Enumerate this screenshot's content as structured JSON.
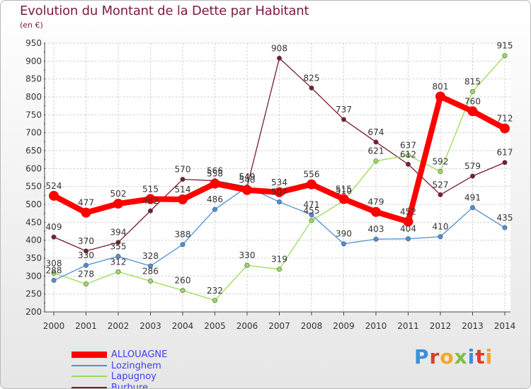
{
  "chart_data": {
    "type": "line",
    "title": "Evolution du Montant de la Dette par Habitant",
    "subtitle": "(en €)",
    "x": [
      "2000",
      "2001",
      "2002",
      "2003",
      "2004",
      "2005",
      "2006",
      "2007",
      "2008",
      "2009",
      "2010",
      "2011",
      "2012",
      "2013",
      "2014"
    ],
    "ylim": [
      200,
      950
    ],
    "yticks": [
      200,
      250,
      300,
      350,
      400,
      450,
      500,
      550,
      600,
      650,
      700,
      750,
      800,
      850,
      900,
      950
    ],
    "grid": true,
    "legend_placement": "bottom-left",
    "series": [
      {
        "name": "ALLOUAGNE",
        "color": "#ff0000",
        "values": [
          524,
          477,
          502,
          515,
          514,
          558,
          540,
          534,
          556,
          515,
          479,
          452,
          801,
          760,
          712
        ]
      },
      {
        "name": "Lozinghem",
        "color": "#4a90d9",
        "values": [
          288,
          330,
          355,
          328,
          388,
          486,
          549,
          507,
          471,
          390,
          403,
          404,
          410,
          491,
          435
        ]
      },
      {
        "name": "Lapugnoy",
        "color": "#99dd55",
        "values": [
          308,
          278,
          312,
          286,
          260,
          232,
          330,
          319,
          455,
          510,
          621,
          637,
          592,
          815,
          915
        ]
      },
      {
        "name": "Burbure",
        "color": "#7a1c2a",
        "values": [
          409,
          370,
          394,
          482,
          570,
          566,
          549,
          908,
          825,
          737,
          674,
          612,
          527,
          579,
          617
        ]
      }
    ]
  },
  "logo": {
    "letters": [
      {
        "char": "P",
        "color": "#3a8fd8"
      },
      {
        "char": "r",
        "color": "#e23a2e"
      },
      {
        "char": "o",
        "color": "#f5a623"
      },
      {
        "char": "x",
        "color": "#7cc043"
      },
      {
        "char": "i",
        "color": "#3a8fd8"
      },
      {
        "char": "t",
        "color": "#e23a2e"
      },
      {
        "char": "i",
        "color": "#f5a623"
      }
    ]
  }
}
